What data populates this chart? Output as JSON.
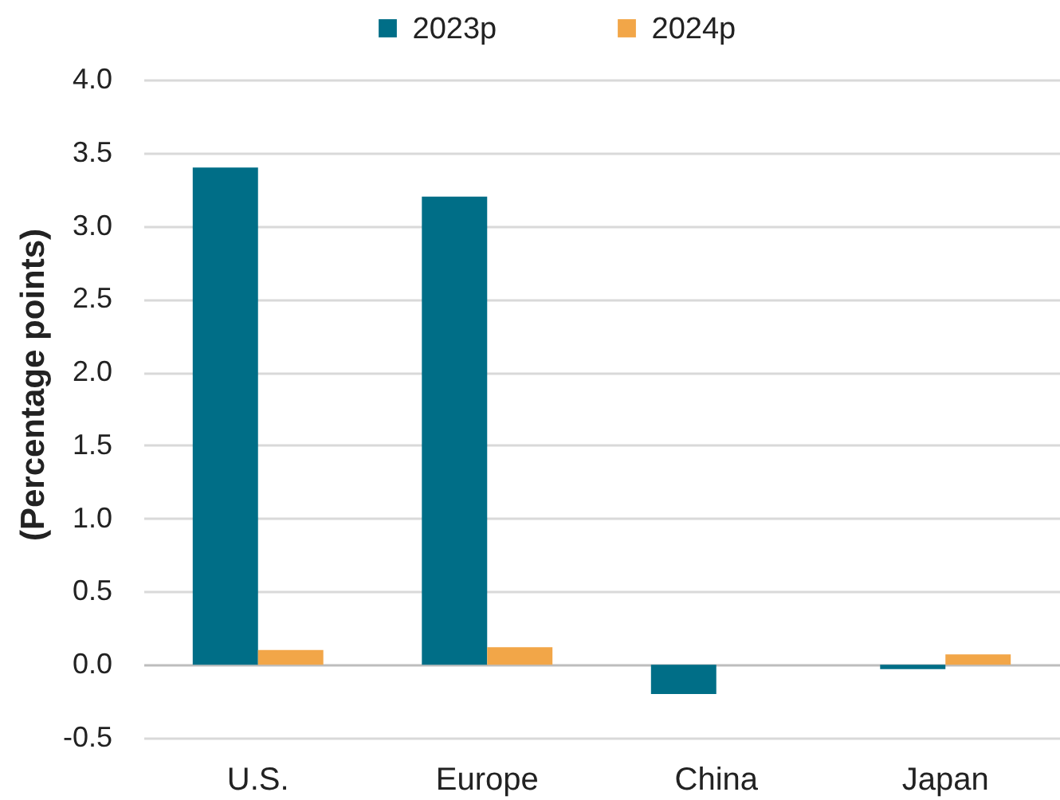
{
  "chart_data": {
    "type": "bar",
    "ylabel": "(Percentage points)",
    "categories": [
      "U.S.",
      "Europe",
      "China",
      "Japan"
    ],
    "series": [
      {
        "name": "2023p",
        "color": "#006e87",
        "values": [
          3.4,
          3.2,
          -0.2,
          -0.03
        ]
      },
      {
        "name": "2024p",
        "color": "#f2a648",
        "values": [
          0.1,
          0.12,
          null,
          0.07
        ]
      }
    ],
    "ylim": [
      -0.5,
      4.0
    ],
    "yticks": [
      -0.5,
      {
        "value": 0,
        "label": "0.0"
      },
      0.5,
      {
        "value": 1,
        "label": "1.0"
      },
      1.5,
      {
        "value": 2,
        "label": "2.0"
      },
      2.5,
      {
        "value": 3,
        "label": "3.0"
      },
      3.5,
      {
        "value": 4,
        "label": "4.0"
      }
    ],
    "grid": "y",
    "legend": "top"
  }
}
